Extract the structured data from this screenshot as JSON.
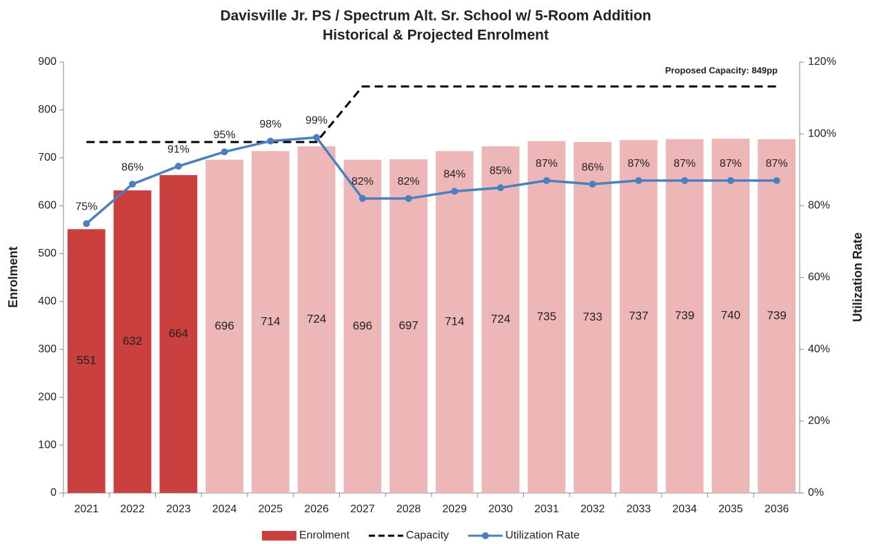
{
  "chart_data": {
    "type": "bar",
    "title": "Davisville Jr. PS / Spectrum Alt. Sr. School w/ 5-Room Addition",
    "subtitle": "Historical & Projected Enrolment",
    "y_label": "Enrolment",
    "y2_label": "Utilization Rate",
    "annotation": "Proposed Capacity: 849pp",
    "categories": [
      "2021",
      "2022",
      "2023",
      "2024",
      "2025",
      "2026",
      "2027",
      "2028",
      "2029",
      "2030",
      "2031",
      "2032",
      "2033",
      "2034",
      "2035",
      "2036"
    ],
    "series": [
      {
        "name": "Enrolment",
        "type": "bar",
        "color": "#c9403f",
        "colors": [
          "#c9403f",
          "#c9403f",
          "#c9403f",
          "#ecb7b6",
          "#ecb7b6",
          "#ecb7b6",
          "#ecb7b6",
          "#ecb7b6",
          "#ecb7b6",
          "#ecb7b6",
          "#ecb7b6",
          "#ecb7b6",
          "#ecb7b6",
          "#ecb7b6",
          "#ecb7b6",
          "#ecb7b6"
        ],
        "label_color": "#c8102e",
        "values": [
          551,
          632,
          664,
          696,
          714,
          724,
          696,
          697,
          714,
          724,
          735,
          733,
          737,
          739,
          740,
          739
        ]
      },
      {
        "name": "Capacity",
        "type": "line",
        "color": "#000000",
        "dashed": true,
        "values": [
          733,
          733,
          733,
          733,
          733,
          733,
          849,
          849,
          849,
          849,
          849,
          849,
          849,
          849,
          849,
          849
        ]
      },
      {
        "name": "Utilization Rate",
        "type": "line",
        "color": "#4a7fc1",
        "axis": "y2",
        "markers": true,
        "values": [
          75,
          86,
          91,
          95,
          98,
          99,
          82,
          82,
          84,
          85,
          87,
          86,
          87,
          87,
          87,
          87
        ],
        "value_labels": [
          "75%",
          "86%",
          "91%",
          "95%",
          "98%",
          "99%",
          "82%",
          "82%",
          "84%",
          "85%",
          "87%",
          "86%",
          "87%",
          "87%",
          "87%",
          "87%"
        ]
      }
    ],
    "ylim": [
      0,
      900
    ],
    "yticks": [
      0,
      100,
      200,
      300,
      400,
      500,
      600,
      700,
      800,
      900
    ],
    "y2lim": [
      0,
      120
    ],
    "y2ticks": [
      {
        "value": 0,
        "label": "0%"
      },
      {
        "value": 20,
        "label": "20%"
      },
      {
        "value": 40,
        "label": "40%"
      },
      {
        "value": 60,
        "label": "60%"
      },
      {
        "value": 80,
        "label": "80%"
      },
      {
        "value": 100,
        "label": "100%"
      },
      {
        "value": 120,
        "label": "120%"
      }
    ],
    "legend": "bottom"
  }
}
